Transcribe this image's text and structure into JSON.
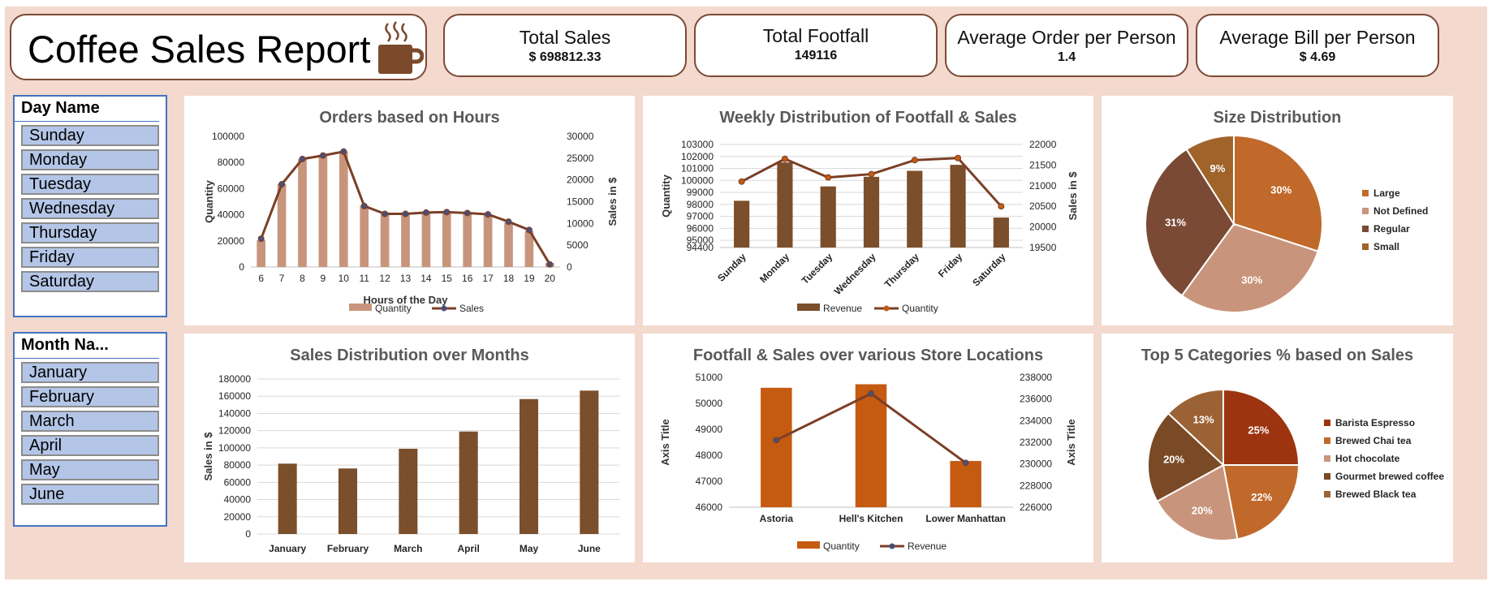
{
  "title": "Coffee Sales Report",
  "kpis": [
    {
      "label": "Total Sales",
      "value": "$ 698812.33"
    },
    {
      "label": "Total Footfall",
      "value": "149116"
    },
    {
      "label": "Average Order per Person",
      "value": "1.4"
    },
    {
      "label": "Average Bill per Person",
      "value": "$ 4.69"
    }
  ],
  "slicers": {
    "day": {
      "header": "Day Name",
      "items": [
        "Sunday",
        "Monday",
        "Tuesday",
        "Wednesday",
        "Thursday",
        "Friday",
        "Saturday"
      ]
    },
    "month": {
      "header": "Month Na...",
      "items": [
        "January",
        "February",
        "March",
        "April",
        "May",
        "June"
      ]
    }
  },
  "colors": {
    "bar_light": "#c8957c",
    "bar_dark": "#7b4f2b",
    "bar_orange": "#c55a11",
    "line": "#7b3f26",
    "marker": "#4a4f7a"
  },
  "chart_data": [
    {
      "type": "bar",
      "title": "Orders based on Hours",
      "xlabel": "Hours of the Day",
      "ylabel": "Quantity",
      "y2label": "Sales in $",
      "categories": [
        "6",
        "7",
        "8",
        "9",
        "10",
        "11",
        "12",
        "13",
        "14",
        "15",
        "16",
        "17",
        "18",
        "19",
        "20"
      ],
      "ylim": [
        0,
        100000
      ],
      "yticks": [
        "0",
        "20000",
        "40000",
        "60000",
        "80000",
        "100000"
      ],
      "y2lim": [
        0,
        30000
      ],
      "y2ticks": [
        "0",
        "5000",
        "10000",
        "15000",
        "20000",
        "25000",
        "30000"
      ],
      "series": [
        {
          "name": "Quantity",
          "type": "bar",
          "axis": "primary",
          "values": [
            20500,
            63500,
            82700,
            85500,
            88500,
            47000,
            40500,
            40500,
            41000,
            41500,
            40500,
            40000,
            34000,
            27500,
            3000
          ]
        },
        {
          "name": "Sales",
          "type": "line",
          "axis": "secondary",
          "values": [
            6500,
            19000,
            24800,
            25600,
            26500,
            14000,
            12200,
            12200,
            12500,
            12600,
            12400,
            12100,
            10400,
            8500,
            600
          ]
        }
      ],
      "legend": "bottom"
    },
    {
      "type": "bar",
      "title": "Weekly Distribution of Footfall & Sales",
      "ylabel": "Quantity",
      "y2label": "Sales in $",
      "categories": [
        "Sunday",
        "Monday",
        "Tuesday",
        "Wednesday",
        "Thursday",
        "Friday",
        "Saturday"
      ],
      "ylim": [
        94400,
        103000
      ],
      "yticks": [
        "94400",
        "95000",
        "96000",
        "97000",
        "98000",
        "99000",
        "100000",
        "101000",
        "102000",
        "103000"
      ],
      "y2lim": [
        19500,
        22000
      ],
      "y2ticks": [
        "19500",
        "20000",
        "20500",
        "21000",
        "21500",
        "22000"
      ],
      "series": [
        {
          "name": "Revenue",
          "type": "bar",
          "axis": "primary",
          "values": [
            98300,
            101500,
            99500,
            100300,
            100800,
            101300,
            96900
          ]
        },
        {
          "name": "Quantity",
          "type": "line",
          "axis": "secondary",
          "values": [
            21100,
            21650,
            21200,
            21280,
            21620,
            21670,
            20500
          ]
        }
      ],
      "legend": "bottom"
    },
    {
      "type": "pie",
      "title": "Size Distribution",
      "labels": [
        "Large",
        "Not Defined",
        "Regular",
        "Small"
      ],
      "values": [
        30,
        30,
        31,
        9
      ],
      "colors": [
        "#c0692b",
        "#c8957c",
        "#7a4a35",
        "#a0642a"
      ],
      "legend": "right"
    },
    {
      "type": "bar",
      "title": "Sales Distribution over Months",
      "ylabel": "Sales in $",
      "categories": [
        "January",
        "February",
        "March",
        "April",
        "May",
        "June"
      ],
      "ylim": [
        0,
        180000
      ],
      "yticks": [
        "0",
        "20000",
        "40000",
        "60000",
        "80000",
        "100000",
        "120000",
        "140000",
        "160000",
        "180000"
      ],
      "series": [
        {
          "name": "Sales",
          "values": [
            81700,
            76100,
            99000,
            119000,
            156700,
            166500
          ]
        }
      ]
    },
    {
      "type": "bar",
      "title": "Footfall & Sales over various  Store Locations",
      "ylabel": "Axis Title",
      "y2label": "Axis Title",
      "categories": [
        "Astoria",
        "Hell's Kitchen",
        "Lower Manhattan"
      ],
      "ylim": [
        46000,
        51000
      ],
      "yticks": [
        "46000",
        "47000",
        "48000",
        "49000",
        "50000",
        "51000"
      ],
      "y2lim": [
        226000,
        238000
      ],
      "y2ticks": [
        "226000",
        "228000",
        "230000",
        "232000",
        "234000",
        "236000",
        "238000"
      ],
      "series": [
        {
          "name": "Quantity",
          "type": "bar",
          "axis": "primary",
          "values": [
            50600,
            50735,
            47780
          ]
        },
        {
          "name": "Revenue",
          "type": "line",
          "axis": "secondary",
          "values": [
            232200,
            236500,
            230100
          ]
        }
      ],
      "legend": "bottom"
    },
    {
      "type": "pie",
      "title": "Top 5 Categories % based on Sales",
      "labels": [
        "Barista Espresso",
        "Brewed Chai tea",
        "Hot chocolate",
        "Gourmet brewed coffee",
        "Brewed Black tea"
      ],
      "values": [
        25,
        22,
        20,
        20,
        13
      ],
      "colors": [
        "#9c3410",
        "#c0692b",
        "#c8957c",
        "#7a4a26",
        "#9b6335"
      ],
      "legend": "right"
    }
  ]
}
